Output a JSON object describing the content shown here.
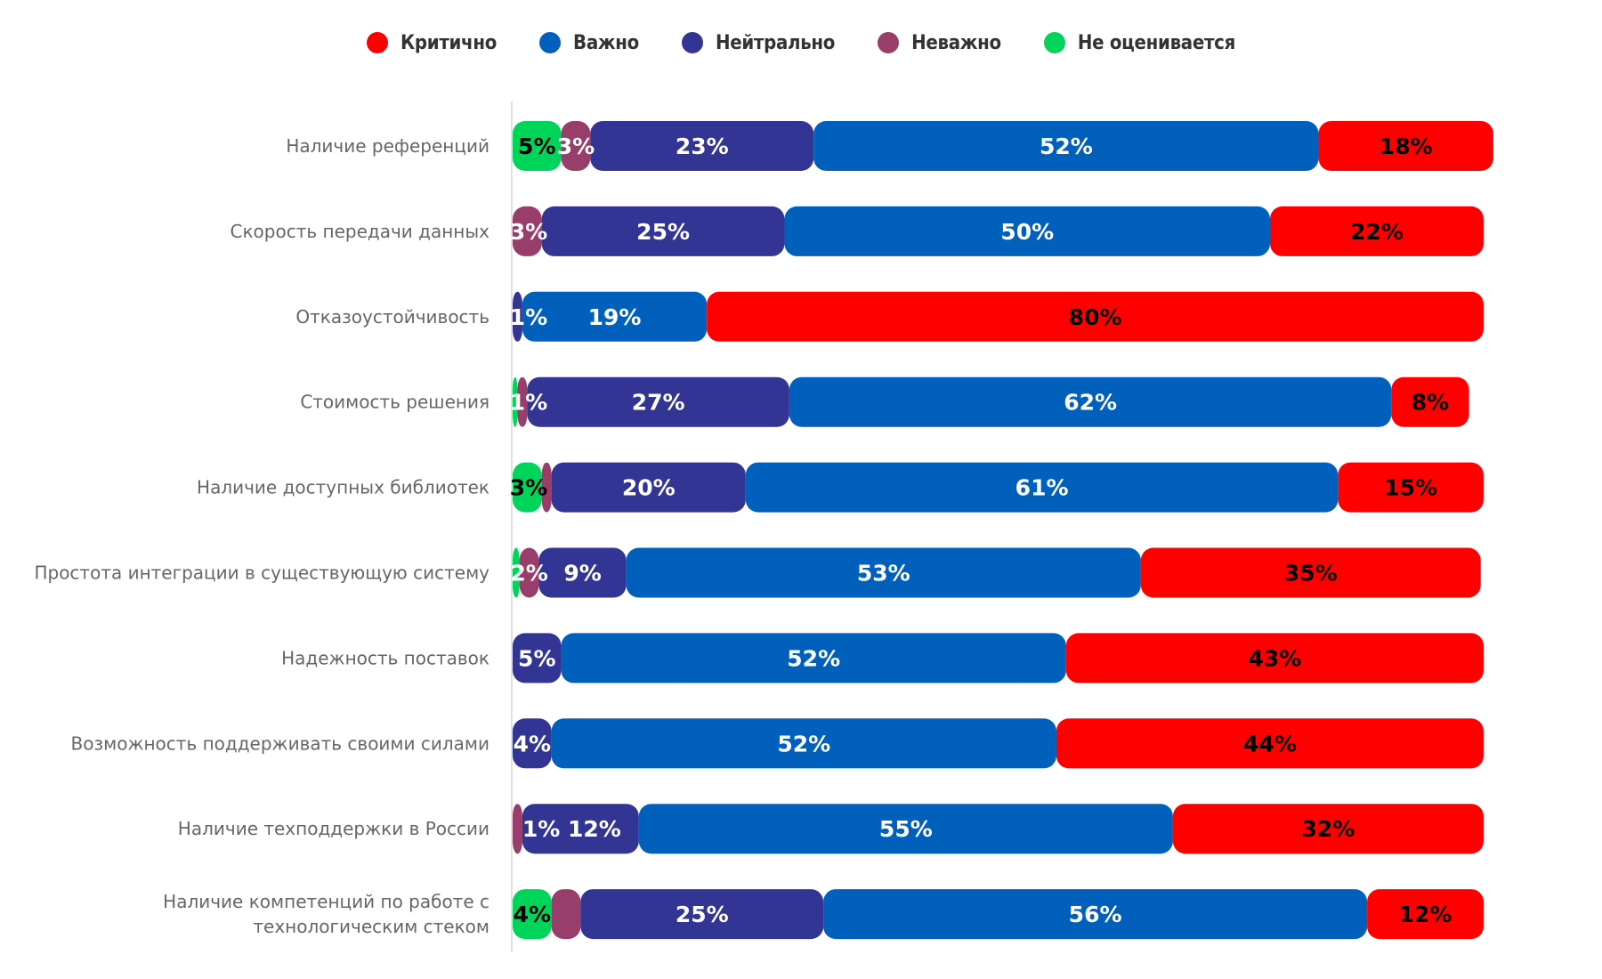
{
  "chart_data": {
    "type": "bar",
    "orientation": "horizontal",
    "stacked": true,
    "title": "",
    "xlabel": "",
    "ylabel": "",
    "grid": false,
    "legend_position": "top-center",
    "categories": [
      [
        "Наличие референций"
      ],
      [
        "Скорость передачи данных"
      ],
      [
        "Отказоустойчивость"
      ],
      [
        "Стоимость решения"
      ],
      [
        "Наличие доступных библиотек"
      ],
      [
        "Простота интеграции в существующую систему"
      ],
      [
        "Надежность поставок"
      ],
      [
        "Возможность поддерживать своими силами"
      ],
      [
        "Наличие техподдержки в России"
      ],
      [
        "Наличие компетенций по работе с",
        "технологическим стеком"
      ]
    ],
    "series": [
      {
        "name": "Не оценивается",
        "color": "#00d45a",
        "label_color": "#000000",
        "values": [
          5,
          0,
          0,
          0.5,
          3,
          0.7,
          0,
          0,
          0,
          4
        ],
        "labels": [
          "5%",
          "",
          "",
          "",
          "3%",
          "",
          "",
          "",
          "",
          "4%"
        ]
      },
      {
        "name": "Неважно",
        "color": "#993d6a",
        "label_color": "#ffffff",
        "values": [
          3,
          3,
          0,
          1,
          1,
          2,
          0,
          0,
          1,
          3
        ],
        "labels": [
          "3%",
          "3%",
          "",
          "1%",
          "",
          "2%",
          "",
          "",
          "",
          ""
        ]
      },
      {
        "name": "Нейтрально",
        "color": "#333594",
        "label_color": "#ffffff",
        "values": [
          23,
          25,
          1,
          27,
          20,
          9,
          5,
          4,
          12,
          25
        ],
        "labels": [
          "23%",
          "25%",
          "1%",
          "27%",
          "20%",
          "9%",
          "5%",
          "4%",
          "1% 12%",
          "25%"
        ]
      },
      {
        "name": "Важно",
        "color": "#0060bb",
        "label_color": "#ffffff",
        "values": [
          52,
          50,
          19,
          62,
          61,
          53,
          52,
          52,
          55,
          56
        ],
        "labels": [
          "52%",
          "50%",
          "19%",
          "62%",
          "61%",
          "53%",
          "52%",
          "52%",
          "55%",
          "56%"
        ]
      },
      {
        "name": "Критично",
        "color": "#ff0000",
        "label_color": "#000000",
        "values": [
          18,
          22,
          80,
          8,
          15,
          35,
          43,
          44,
          32,
          12
        ],
        "labels": [
          "18%",
          "22%",
          "80%",
          "8%",
          "15%",
          "35%",
          "43%",
          "44%",
          "32%",
          "12%"
        ]
      }
    ],
    "legend": [
      "Критично",
      "Важно",
      "Нейтрально",
      "Неважно",
      "Не оценивается"
    ],
    "legend_colors": [
      "#ff0000",
      "#0060bb",
      "#333594",
      "#993d6a",
      "#00d45a"
    ],
    "xlim": [
      0,
      100
    ]
  }
}
